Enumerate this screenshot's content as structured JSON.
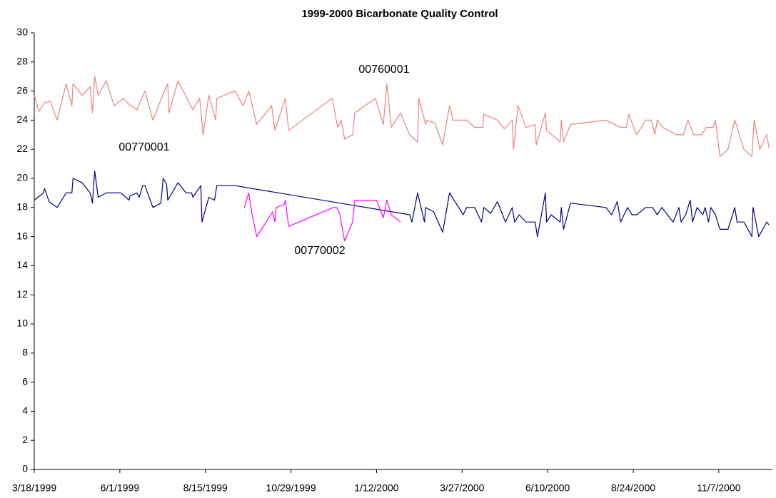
{
  "chart_data": {
    "type": "line",
    "title": "1999-2000 Bicarbonate Quality Control",
    "xlim": [
      "3/18/1999",
      "12/24/2000"
    ],
    "xticks": [
      "3/18/1999",
      "6/1/1999",
      "8/15/1999",
      "10/29/1999",
      "1/12/2000",
      "3/27/2000",
      "6/10/2000",
      "8/24/2000",
      "11/7/2000"
    ],
    "ylim": [
      0,
      30
    ],
    "yticks": [
      0,
      2,
      4,
      6,
      8,
      10,
      12,
      14,
      16,
      18,
      20,
      22,
      24,
      26,
      28,
      30
    ],
    "grid": false,
    "series": [
      {
        "name": "00760001",
        "color": "#f08080",
        "x": [
          "3/18/1999",
          "3/22/1999",
          "3/27/1999",
          "4/1/1999",
          "4/7/1999",
          "4/15/1999",
          "4/20/1999",
          "4/21/1999",
          "4/29/1999",
          "5/6/1999",
          "5/8/1999",
          "5/10/1999",
          "5/13/1999",
          "5/20/1999",
          "5/27/1999",
          "6/4/1999",
          "6/9/1999",
          "6/16/1999",
          "6/23/1999",
          "6/30/1999",
          "7/9/1999",
          "7/13/1999",
          "7/14/1999",
          "7/22/1999",
          "8/4/1999",
          "8/10/1999",
          "8/13/1999",
          "8/18/1999",
          "8/24/1999",
          "8/25/1999",
          "9/10/1999",
          "9/17/1999",
          "9/22/1999",
          "9/29/1999",
          "10/12/1999",
          "10/15/1999",
          "10/24/1999",
          "10/27/1999",
          "12/4/1999",
          "12/9/1999",
          "12/12/1999",
          "12/15/1999",
          "12/22/1999",
          "12/24/1999",
          "1/11/2000",
          "1/18/2000",
          "1/21/2000",
          "1/25/2000",
          "2/2/2000",
          "2/10/2000",
          "2/17/2000",
          "2/18/2000",
          "2/24/2000",
          "2/25/2000",
          "3/3/2000",
          "3/10/2000",
          "3/16/2000",
          "3/19/2000",
          "3/31/2000",
          "4/7/2000",
          "4/14/2000",
          "4/15/2000",
          "4/27/2000",
          "5/3/2000",
          "5/10/2000",
          "5/11/2000",
          "5/15/2000",
          "5/22/2000",
          "5/30/2000",
          "5/31/2000",
          "6/8/2000",
          "6/9/2000",
          "6/21/2000",
          "6/22/2000",
          "6/24/2000",
          "6/30/2000",
          "7/31/2000",
          "8/13/2000",
          "8/18/2000",
          "8/20/2000",
          "8/27/2000",
          "9/4/2000",
          "9/9/2000",
          "9/12/2000",
          "9/14/2000",
          "9/19/2000",
          "10/1/2000",
          "10/7/2000",
          "10/11/2000",
          "10/16/2000",
          "10/23/2000",
          "10/27/2000",
          "11/2/2000",
          "11/4/2000",
          "11/8/2000",
          "11/15/2000",
          "11/21/2000",
          "11/29/2000",
          "12/6/2000",
          "12/8/2000",
          "12/13/2000",
          "12/19/2000",
          "12/21/2000"
        ],
        "values": [
          25.7,
          24.6,
          25.2,
          25.3,
          24.0,
          26.5,
          25.0,
          26.5,
          25.7,
          26.3,
          24.5,
          27.0,
          25.7,
          26.7,
          25.0,
          25.5,
          25.1,
          24.7,
          26.0,
          24.0,
          25.8,
          26.5,
          24.5,
          26.7,
          24.7,
          25.5,
          23.0,
          25.7,
          24.0,
          25.5,
          26.0,
          25.0,
          26.0,
          23.7,
          25.0,
          23.3,
          25.5,
          23.3,
          25.5,
          23.5,
          24.0,
          22.7,
          23.0,
          24.5,
          25.5,
          23.7,
          26.5,
          23.5,
          24.5,
          23.0,
          22.5,
          25.5,
          23.7,
          24.0,
          23.8,
          22.3,
          25.0,
          24.0,
          24.0,
          23.5,
          23.5,
          24.4,
          24.0,
          23.4,
          24.0,
          22.0,
          25.0,
          23.5,
          23.7,
          22.3,
          24.5,
          23.3,
          22.5,
          24.0,
          22.5,
          23.7,
          24.0,
          23.5,
          23.5,
          24.4,
          23.0,
          24.0,
          24.0,
          23.0,
          24.0,
          23.5,
          23.0,
          23.0,
          24.0,
          23.0,
          23.0,
          23.5,
          23.5,
          24.0,
          21.5,
          22.0,
          24.0,
          22.0,
          21.5,
          24.0,
          22.0,
          23.0,
          22.1
        ]
      },
      {
        "name": "00770001",
        "color": "#000080",
        "x": [
          "3/18/1999",
          "3/26/1999",
          "3/27/1999",
          "3/31/1999",
          "4/7/1999",
          "4/15/1999",
          "4/20/1999",
          "4/21/1999",
          "4/29/1999",
          "5/6/1999",
          "5/8/1999",
          "5/10/1999",
          "5/13/1999",
          "5/20/1999",
          "6/2/1999",
          "6/9/1999",
          "6/10/1999",
          "6/16/1999",
          "6/18/1999",
          "6/21/1999",
          "6/23/1999",
          "6/30/1999",
          "7/7/1999",
          "7/9/1999",
          "7/12/1999",
          "7/13/1999",
          "7/22/1999",
          "7/29/1999",
          "8/3/1999",
          "8/4/1999",
          "8/11/1999",
          "8/12/1999",
          "8/18/1999",
          "8/23/1999",
          "8/25/1999",
          "9/10/1999",
          "2/10/2000",
          "2/12/2000",
          "2/17/2000",
          "2/23/2000",
          "2/24/2000",
          "3/2/2000",
          "3/10/2000",
          "3/16/2000",
          "3/28/2000",
          "3/31/2000",
          "4/7/2000",
          "4/13/2000",
          "4/15/2000",
          "4/21/2000",
          "4/27/2000",
          "5/4/2000",
          "5/10/2000",
          "5/12/2000",
          "5/16/2000",
          "5/22/2000",
          "5/30/2000",
          "6/1/2000",
          "6/8/2000",
          "6/9/2000",
          "6/13/2000",
          "6/21/2000",
          "6/22/2000",
          "6/24/2000",
          "6/30/2000",
          "7/31/2000",
          "8/5/2000",
          "8/10/2000",
          "8/13/2000",
          "8/19/2000",
          "8/23/2000",
          "8/27/2000",
          "9/4/2000",
          "9/10/2000",
          "9/14/2000",
          "9/18/2000",
          "9/28/2000",
          "10/3/2000",
          "10/5/2000",
          "10/9/2000",
          "10/13/2000",
          "10/15/2000",
          "10/19/2000",
          "10/24/2000",
          "10/26/2000",
          "10/29/2000",
          "10/31/2000",
          "11/4/2000",
          "11/8/2000",
          "11/15/2000",
          "11/21/2000",
          "11/23/2000",
          "11/29/2000",
          "12/6/2000",
          "12/7/2000",
          "12/12/2000",
          "12/19/2000",
          "12/21/2000"
        ],
        "values": [
          18.5,
          19.0,
          19.3,
          18.4,
          18.0,
          19.0,
          19.0,
          20.0,
          19.7,
          19.0,
          18.3,
          20.5,
          18.7,
          19.0,
          19.0,
          18.5,
          18.8,
          19.0,
          18.7,
          19.5,
          19.5,
          18.0,
          18.3,
          20.0,
          19.6,
          18.5,
          19.7,
          19.0,
          19.0,
          18.7,
          19.5,
          17.0,
          18.7,
          18.5,
          19.5,
          19.5,
          17.5,
          17.0,
          19.0,
          17.0,
          18.0,
          17.7,
          16.3,
          19.0,
          17.5,
          18.0,
          18.0,
          17.0,
          18.0,
          17.6,
          18.4,
          17.0,
          18.0,
          17.0,
          17.5,
          17.0,
          17.0,
          16.0,
          19.0,
          17.0,
          17.5,
          17.0,
          18.0,
          16.5,
          18.3,
          18.0,
          17.5,
          18.4,
          17.0,
          18.0,
          17.5,
          17.5,
          18.0,
          18.0,
          17.5,
          18.0,
          17.0,
          18.0,
          17.0,
          17.5,
          18.5,
          17.0,
          18.0,
          17.5,
          18.0,
          17.0,
          18.0,
          17.5,
          16.5,
          16.5,
          18.0,
          17.0,
          17.0,
          16.0,
          18.0,
          16.0,
          17.0,
          16.8
        ]
      },
      {
        "name": "00770002",
        "color": "#ff00ff",
        "x": [
          "9/18/1999",
          "9/22/1999",
          "9/25/1999",
          "9/29/1999",
          "10/13/1999",
          "10/15/1999",
          "10/16/1999",
          "10/23/1999",
          "10/24/1999",
          "10/27/1999",
          "12/5/1999",
          "12/8/1999",
          "12/11/1999",
          "12/12/1999",
          "12/15/1999",
          "12/22/1999",
          "12/24/1999",
          "1/12/2000",
          "1/18/2000",
          "1/21/2000",
          "1/25/2000",
          "2/2/2000"
        ],
        "values": [
          18.0,
          19.0,
          17.5,
          16.0,
          17.7,
          17.0,
          18.0,
          18.2,
          18.5,
          16.7,
          18.0,
          18.0,
          17.5,
          17.0,
          15.7,
          17.0,
          18.5,
          18.5,
          17.3,
          18.5,
          17.5,
          17.0
        ]
      }
    ]
  }
}
